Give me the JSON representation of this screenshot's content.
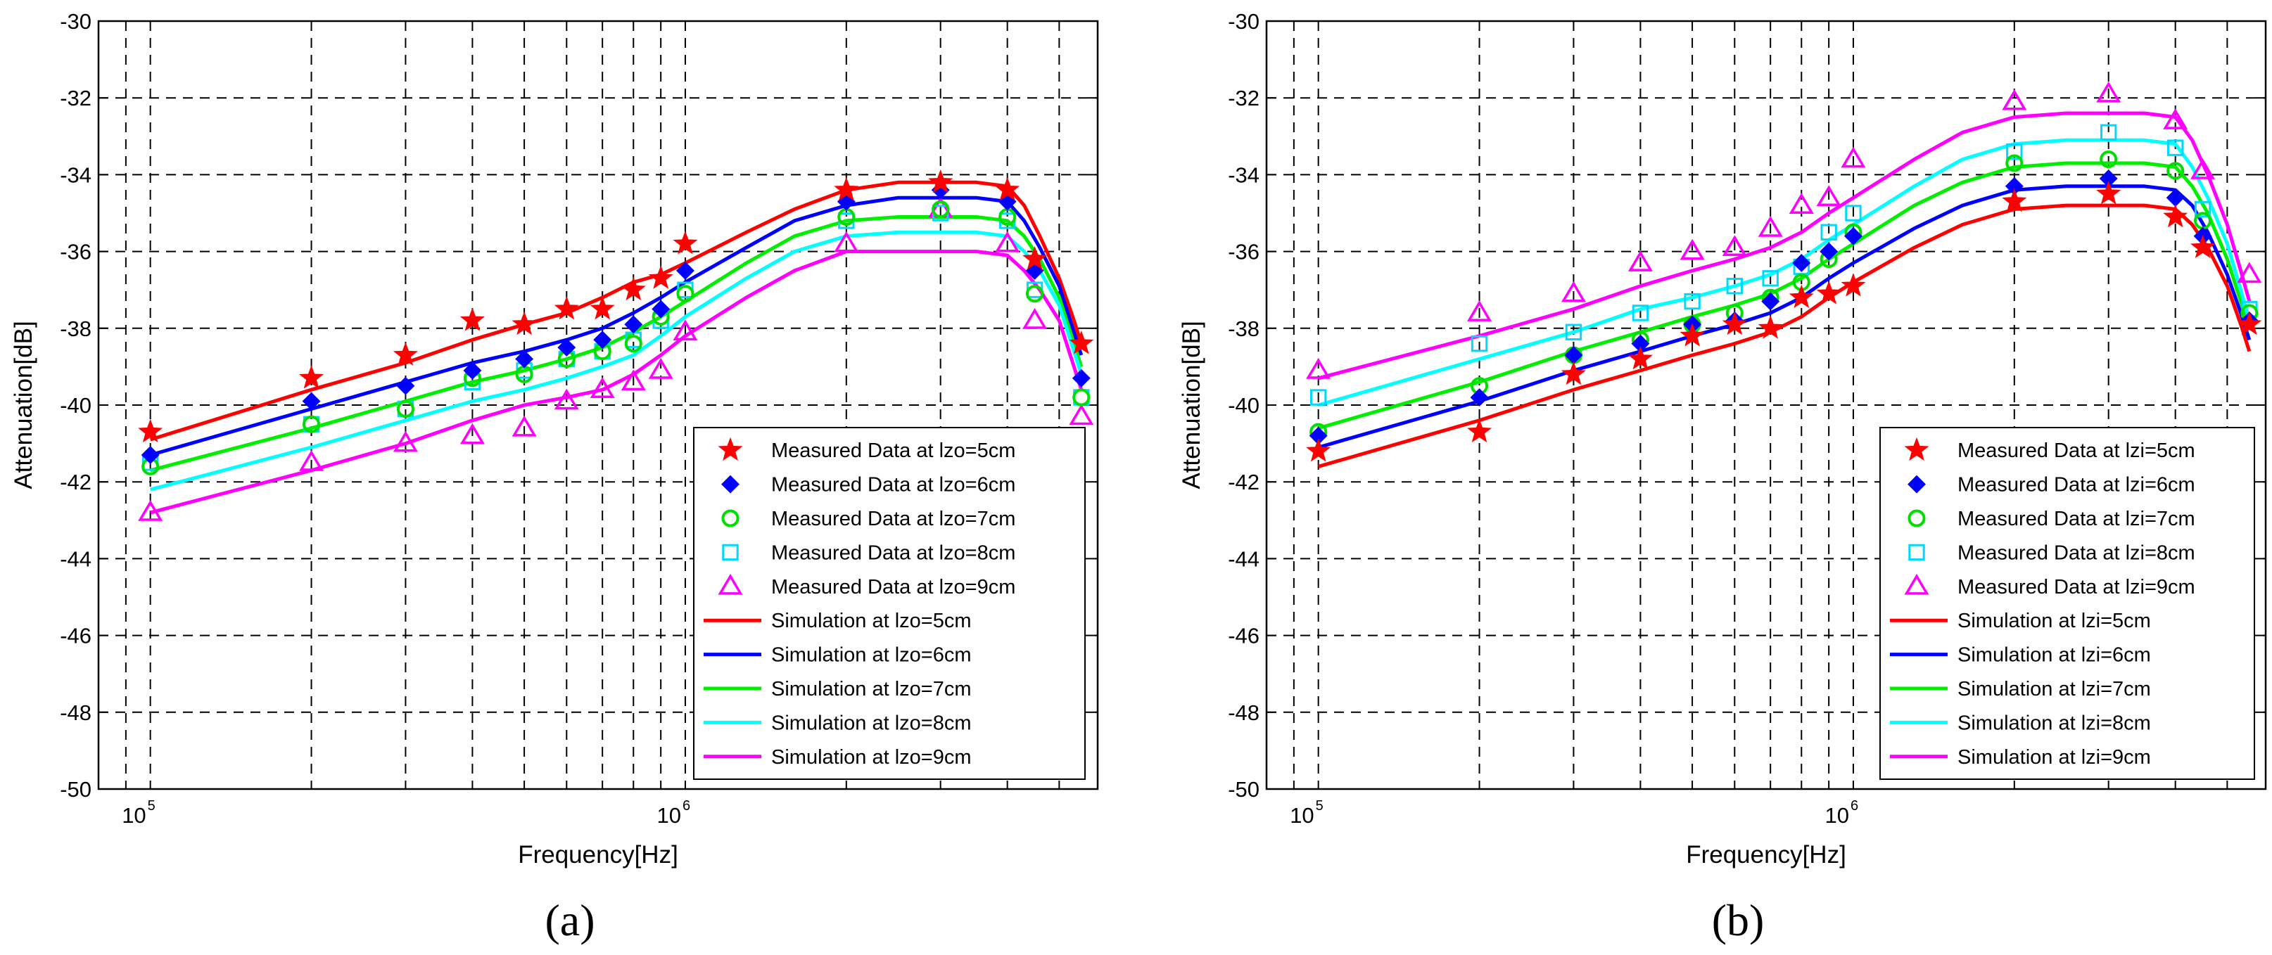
{
  "chart_data": [
    {
      "type": "line",
      "panel_label": "(a)",
      "panel_letter": "a",
      "xlabel": "Frequency[Hz]",
      "ylabel": "Attenuation[dB]",
      "xscale": "log",
      "xlim": [
        80000,
        5900000
      ],
      "ylim": [
        -50,
        -30
      ],
      "yticks": [
        -50,
        -48,
        -46,
        -44,
        -42,
        -40,
        -38,
        -36,
        -34,
        -32,
        -30
      ],
      "ytick_labels": [
        "-50",
        "-48",
        "-46",
        "-44",
        "-42",
        "-40",
        "-38",
        "-36",
        "-34",
        "-32",
        "-30"
      ],
      "xtick_labels": [
        {
          "base": "10",
          "exp": "5",
          "value": 100000
        },
        {
          "base": "10",
          "exp": "6",
          "value": 1000000
        }
      ],
      "grid": true,
      "legend_position": "lower-right",
      "measured_x": [
        100000,
        200000,
        300000,
        400000,
        500000,
        600000,
        700000,
        800000,
        900000,
        1000000,
        2000000,
        3000000,
        4000000,
        4500000,
        5500000
      ],
      "measured_series": [
        {
          "name": "Measured Data at lzo=5cm",
          "marker": "star",
          "color": "#ff0000",
          "values": [
            -40.7,
            -39.3,
            -38.7,
            -37.8,
            -37.9,
            -37.5,
            -37.5,
            -37.0,
            -36.7,
            -35.8,
            -34.4,
            -34.2,
            -34.4,
            -36.2,
            -38.4
          ]
        },
        {
          "name": "Measured Data at lzo=6cm",
          "marker": "diamond",
          "color": "#0000ff",
          "values": [
            -41.3,
            -39.9,
            -39.5,
            -39.1,
            -38.8,
            -38.5,
            -38.3,
            -37.9,
            -37.5,
            -36.5,
            -34.7,
            -34.4,
            -34.7,
            -36.5,
            -39.3
          ]
        },
        {
          "name": "Measured Data at lzo=7cm",
          "marker": "circle",
          "color": "#00dd00",
          "values": [
            -41.6,
            -40.5,
            -40.1,
            -39.3,
            -39.2,
            -38.8,
            -38.6,
            -38.4,
            -37.7,
            -37.1,
            -35.1,
            -34.9,
            -35.1,
            -37.1,
            -39.8
          ]
        },
        {
          "name": "Measured Data at lzo=8cm",
          "marker": "square",
          "color": "#00d8ff",
          "values": [
            -41.5,
            -40.5,
            -40.1,
            -39.4,
            -39.1,
            -38.8,
            -38.6,
            -38.3,
            -37.8,
            -37.0,
            -35.2,
            -35.0,
            -35.2,
            -37.0,
            -39.8
          ]
        },
        {
          "name": "Measured Data at lzo=9cm",
          "marker": "triangle",
          "color": "#ff00ff",
          "values": [
            -42.8,
            -41.5,
            -41.0,
            -40.8,
            -40.6,
            -39.9,
            -39.6,
            -39.4,
            -39.1,
            -38.1,
            -35.8,
            -34.9,
            -35.8,
            -37.8,
            -40.3
          ]
        }
      ],
      "simulation_x": [
        100000,
        200000,
        300000,
        400000,
        500000,
        600000,
        700000,
        800000,
        900000,
        1000000,
        1300000,
        1600000,
        2000000,
        2500000,
        3000000,
        3500000,
        4000000,
        4300000,
        4600000,
        5000000,
        5300000,
        5500000
      ],
      "simulation_series": [
        {
          "name": "Simulation at lzo=5cm",
          "color": "#ff0000",
          "values": [
            -40.9,
            -39.6,
            -38.9,
            -38.3,
            -37.9,
            -37.6,
            -37.2,
            -36.8,
            -36.6,
            -36.3,
            -35.5,
            -34.9,
            -34.4,
            -34.2,
            -34.2,
            -34.2,
            -34.3,
            -34.8,
            -35.6,
            -36.7,
            -37.7,
            -38.4
          ]
        },
        {
          "name": "Simulation at lzo=6cm",
          "color": "#0000ff",
          "values": [
            -41.3,
            -40.1,
            -39.4,
            -38.9,
            -38.6,
            -38.3,
            -38.0,
            -37.6,
            -37.2,
            -36.8,
            -35.9,
            -35.2,
            -34.8,
            -34.6,
            -34.6,
            -34.6,
            -34.7,
            -35.2,
            -35.9,
            -36.9,
            -38.0,
            -38.7
          ]
        },
        {
          "name": "Simulation at lzo=7cm",
          "color": "#00ee00",
          "values": [
            -41.7,
            -40.6,
            -39.9,
            -39.4,
            -39.1,
            -38.8,
            -38.5,
            -38.1,
            -37.7,
            -37.3,
            -36.3,
            -35.6,
            -35.2,
            -35.1,
            -35.1,
            -35.1,
            -35.2,
            -35.6,
            -36.2,
            -37.2,
            -38.3,
            -39.0
          ]
        },
        {
          "name": "Simulation at lzo=8cm",
          "color": "#00ffff",
          "values": [
            -42.2,
            -41.1,
            -40.4,
            -39.9,
            -39.6,
            -39.3,
            -39.0,
            -38.7,
            -38.2,
            -37.7,
            -36.7,
            -36.0,
            -35.6,
            -35.5,
            -35.5,
            -35.5,
            -35.6,
            -36.0,
            -36.5,
            -37.4,
            -38.5,
            -39.2
          ]
        },
        {
          "name": "Simulation at lzo=9cm",
          "color": "#ff00ff",
          "values": [
            -42.8,
            -41.7,
            -41.0,
            -40.4,
            -40.0,
            -39.8,
            -39.6,
            -39.2,
            -38.7,
            -38.2,
            -37.2,
            -36.5,
            -36.0,
            -36.0,
            -36.0,
            -36.0,
            -36.1,
            -36.5,
            -37.0,
            -37.8,
            -38.9,
            -39.6
          ]
        }
      ]
    },
    {
      "type": "line",
      "panel_label": "(b)",
      "panel_letter": "b",
      "xlabel": "Frequency[Hz]",
      "ylabel": "Attenuation[dB]",
      "xscale": "log",
      "xlim": [
        80000,
        5900000
      ],
      "ylim": [
        -50,
        -30
      ],
      "yticks": [
        -50,
        -48,
        -46,
        -44,
        -42,
        -40,
        -38,
        -36,
        -34,
        -32,
        -30
      ],
      "ytick_labels": [
        "-50",
        "-48",
        "-46",
        "-44",
        "-42",
        "-40",
        "-38",
        "-36",
        "-34",
        "-32",
        "-30"
      ],
      "xtick_labels": [
        {
          "base": "10",
          "exp": "5",
          "value": 100000
        },
        {
          "base": "10",
          "exp": "6",
          "value": 1000000
        }
      ],
      "grid": true,
      "legend_position": "lower-right",
      "measured_x": [
        100000,
        200000,
        300000,
        400000,
        500000,
        600000,
        700000,
        800000,
        900000,
        1000000,
        2000000,
        3000000,
        4000000,
        4500000,
        5500000
      ],
      "measured_series": [
        {
          "name": "Measured Data at lzi=5cm",
          "marker": "star",
          "color": "#ff0000",
          "values": [
            -41.2,
            -40.7,
            -39.2,
            -38.8,
            -38.2,
            -37.9,
            -38.0,
            -37.2,
            -37.1,
            -36.9,
            -34.7,
            -34.5,
            -35.1,
            -35.9,
            -37.9
          ]
        },
        {
          "name": "Measured Data at lzi=6cm",
          "marker": "diamond",
          "color": "#0000ff",
          "values": [
            -40.8,
            -39.8,
            -38.7,
            -38.4,
            -37.9,
            -37.8,
            -37.3,
            -36.3,
            -36.0,
            -35.6,
            -34.3,
            -34.1,
            -34.6,
            -35.6,
            -37.8
          ]
        },
        {
          "name": "Measured Data at lzi=7cm",
          "marker": "circle",
          "color": "#00dd00",
          "values": [
            -40.7,
            -39.5,
            -38.7,
            -38.3,
            -37.9,
            -37.6,
            -37.2,
            -36.8,
            -36.2,
            -35.5,
            -33.7,
            -33.6,
            -33.9,
            -35.2,
            -37.6
          ]
        },
        {
          "name": "Measured Data at lzi=8cm",
          "marker": "square",
          "color": "#00d8ff",
          "values": [
            -39.8,
            -38.4,
            -38.1,
            -37.6,
            -37.3,
            -36.9,
            -36.7,
            -36.4,
            -35.5,
            -35.0,
            -33.4,
            -32.9,
            -33.3,
            -34.9,
            -37.5
          ]
        },
        {
          "name": "Measured Data at lzi=9cm",
          "marker": "triangle",
          "color": "#ff00ff",
          "values": [
            -39.1,
            -37.6,
            -37.1,
            -36.3,
            -36.0,
            -35.9,
            -35.4,
            -34.8,
            -34.6,
            -33.6,
            -32.1,
            -31.9,
            -32.6,
            -33.9,
            -36.6
          ]
        }
      ],
      "simulation_x": [
        100000,
        200000,
        300000,
        400000,
        500000,
        600000,
        700000,
        800000,
        900000,
        1000000,
        1300000,
        1600000,
        2000000,
        2500000,
        3000000,
        3500000,
        4000000,
        4300000,
        4600000,
        5000000,
        5300000,
        5500000
      ],
      "simulation_series": [
        {
          "name": "Simulation at lzi=5cm",
          "color": "#ff0000",
          "values": [
            -41.6,
            -40.4,
            -39.6,
            -39.1,
            -38.7,
            -38.4,
            -38.1,
            -37.7,
            -37.2,
            -36.8,
            -35.9,
            -35.3,
            -34.9,
            -34.8,
            -34.8,
            -34.8,
            -34.9,
            -35.3,
            -35.9,
            -36.9,
            -37.9,
            -38.6
          ]
        },
        {
          "name": "Simulation at lzi=6cm",
          "color": "#0000ff",
          "values": [
            -41.1,
            -39.9,
            -39.1,
            -38.6,
            -38.2,
            -37.9,
            -37.6,
            -37.2,
            -36.7,
            -36.3,
            -35.4,
            -34.8,
            -34.4,
            -34.3,
            -34.3,
            -34.3,
            -34.4,
            -34.8,
            -35.5,
            -36.6,
            -37.6,
            -38.3
          ]
        },
        {
          "name": "Simulation at lzi=7cm",
          "color": "#00ee00",
          "values": [
            -40.6,
            -39.4,
            -38.6,
            -38.1,
            -37.7,
            -37.4,
            -37.1,
            -36.7,
            -36.2,
            -35.8,
            -34.8,
            -34.2,
            -33.8,
            -33.7,
            -33.7,
            -33.7,
            -33.8,
            -34.3,
            -35.0,
            -36.2,
            -37.3,
            -38.0
          ]
        },
        {
          "name": "Simulation at lzi=8cm",
          "color": "#00ffff",
          "values": [
            -40.0,
            -38.8,
            -38.1,
            -37.5,
            -37.2,
            -36.9,
            -36.6,
            -36.2,
            -35.7,
            -35.3,
            -34.3,
            -33.6,
            -33.2,
            -33.1,
            -33.1,
            -33.1,
            -33.2,
            -33.8,
            -34.6,
            -35.8,
            -37.0,
            -37.8
          ]
        },
        {
          "name": "Simulation at lzi=9cm",
          "color": "#ff00ff",
          "values": [
            -39.3,
            -38.2,
            -37.5,
            -36.9,
            -36.5,
            -36.2,
            -35.9,
            -35.5,
            -35.0,
            -34.6,
            -33.6,
            -32.9,
            -32.5,
            -32.4,
            -32.4,
            -32.4,
            -32.5,
            -33.1,
            -34.0,
            -35.3,
            -36.5,
            -37.3
          ]
        }
      ]
    }
  ]
}
